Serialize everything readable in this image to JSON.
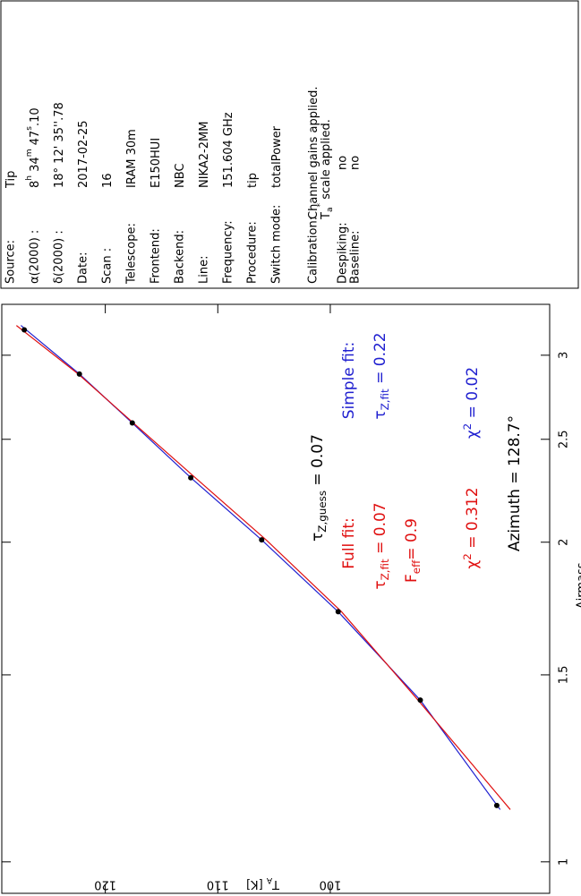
{
  "chart_data": {
    "type": "scatter",
    "x_label": "Airmass",
    "y_label": [
      {
        "text": "T"
      },
      {
        "text": "A",
        "style": "sub"
      },
      {
        "text": " [K]"
      }
    ],
    "x": [
      3.17,
      2.88,
      2.59,
      2.3,
      2.01,
      1.72,
      1.42,
      1.13
    ],
    "values": [
      127.2,
      122.3,
      117.6,
      112.4,
      106.1,
      99.3,
      92.0,
      85.2
    ],
    "color": "#000000",
    "fit_lines": [
      {
        "color": "#2020d0",
        "x": [
          3.2,
          2.88,
          2.59,
          2.3,
          2.01,
          1.72,
          1.42,
          1.12
        ],
        "values": [
          127.5,
          122.3,
          117.6,
          112.4,
          106.1,
          99.3,
          92.0,
          84.9
        ]
      },
      {
        "color": "#e01010",
        "x": [
          3.2,
          2.88,
          2.59,
          2.3,
          2.01,
          1.72,
          1.42,
          1.12
        ],
        "values": [
          127.9,
          122.4,
          117.5,
          112.0,
          105.7,
          99.0,
          92.2,
          84.0
        ]
      }
    ],
    "xlim": [
      0.934,
      3.35
    ],
    "xscale": "log",
    "xticks": [
      1,
      1.5,
      2,
      2.5,
      3
    ],
    "ylim": [
      80.5,
      129.2
    ],
    "yticks": [
      100,
      110,
      120
    ],
    "annotations": [
      {
        "color": "#000000",
        "segments": [
          {
            "text": "τ"
          },
          {
            "text": "Z,guess",
            "style": "sub"
          },
          {
            "text": " = 0.07"
          }
        ]
      },
      {
        "color": "#e01010",
        "segments": [
          {
            "text": "Full fit:"
          }
        ]
      },
      {
        "color": "#2020d0",
        "segments": [
          {
            "text": "Simple fit:"
          }
        ]
      },
      {
        "color": "#e01010",
        "segments": [
          {
            "text": "τ"
          },
          {
            "text": "Z,fit",
            "style": "sub"
          },
          {
            "text": " = 0.07"
          }
        ]
      },
      {
        "color": "#2020d0",
        "segments": [
          {
            "text": "τ"
          },
          {
            "text": "Z,fit",
            "style": "sub"
          },
          {
            "text": " = 0.22"
          }
        ]
      },
      {
        "color": "#e01010",
        "segments": [
          {
            "text": "F"
          },
          {
            "text": "eff",
            "style": "sub"
          },
          {
            "text": "= 0.9"
          }
        ]
      },
      {
        "color": "#e01010",
        "segments": [
          {
            "text": "χ"
          },
          {
            "text": "2",
            "style": "sup"
          },
          {
            "text": " = 0.312"
          }
        ]
      },
      {
        "color": "#2020d0",
        "segments": [
          {
            "text": "χ"
          },
          {
            "text": "2",
            "style": "sup"
          },
          {
            "text": " = 0.02"
          }
        ]
      },
      {
        "color": "#000000",
        "segments": [
          {
            "text": "Azimuth = 128.7°"
          }
        ]
      }
    ]
  },
  "info_panel": {
    "rows": [
      {
        "label": "Source:",
        "value": [
          {
            "text": "Tip"
          }
        ]
      },
      {
        "label": "α(2000) :",
        "value": [
          {
            "text": "8"
          },
          {
            "text": "h",
            "style": "sup"
          },
          {
            "text": " 34"
          },
          {
            "text": "m",
            "style": "sup"
          },
          {
            "text": " 47"
          },
          {
            "text": "s",
            "style": "sup"
          },
          {
            "text": ".10"
          }
        ]
      },
      {
        "label": "δ(2000) :",
        "value": [
          {
            "text": "18° 12' 35''.78"
          }
        ]
      },
      {
        "label": "Date:",
        "value": [
          {
            "text": "2017-02-25"
          }
        ]
      },
      {
        "label": "Scan :",
        "value": [
          {
            "text": "16"
          }
        ]
      },
      {
        "label": "Telescope:",
        "value": [
          {
            "text": "IRAM 30m"
          }
        ]
      },
      {
        "label": "Frontend:",
        "value": [
          {
            "text": "E150HUI"
          }
        ]
      },
      {
        "label": "Backend:",
        "value": [
          {
            "text": "NBC"
          }
        ]
      },
      {
        "label": "Line:",
        "value": [
          {
            "text": "NIKA2-2MM"
          }
        ]
      },
      {
        "label": "Frequency:",
        "value": [
          {
            "text": "151.604 GHz"
          }
        ]
      },
      {
        "label": "Procedure:",
        "value": [
          {
            "text": "tip"
          }
        ]
      },
      {
        "label": "Switch mode:",
        "value": [
          {
            "text": "totalPower"
          }
        ]
      }
    ],
    "calibration": {
      "label": "Calibration:",
      "lines": [
        [
          {
            "text": "Channel gains applied."
          }
        ],
        [
          {
            "text": "T"
          },
          {
            "text": "a",
            "style": "sub"
          },
          {
            "text": "*",
            "style": "sup"
          },
          {
            "text": " scale applied."
          }
        ]
      ]
    },
    "flags": [
      {
        "label": "Despiking:",
        "value": "no"
      },
      {
        "label": "Baseline:",
        "value": "no"
      }
    ]
  }
}
